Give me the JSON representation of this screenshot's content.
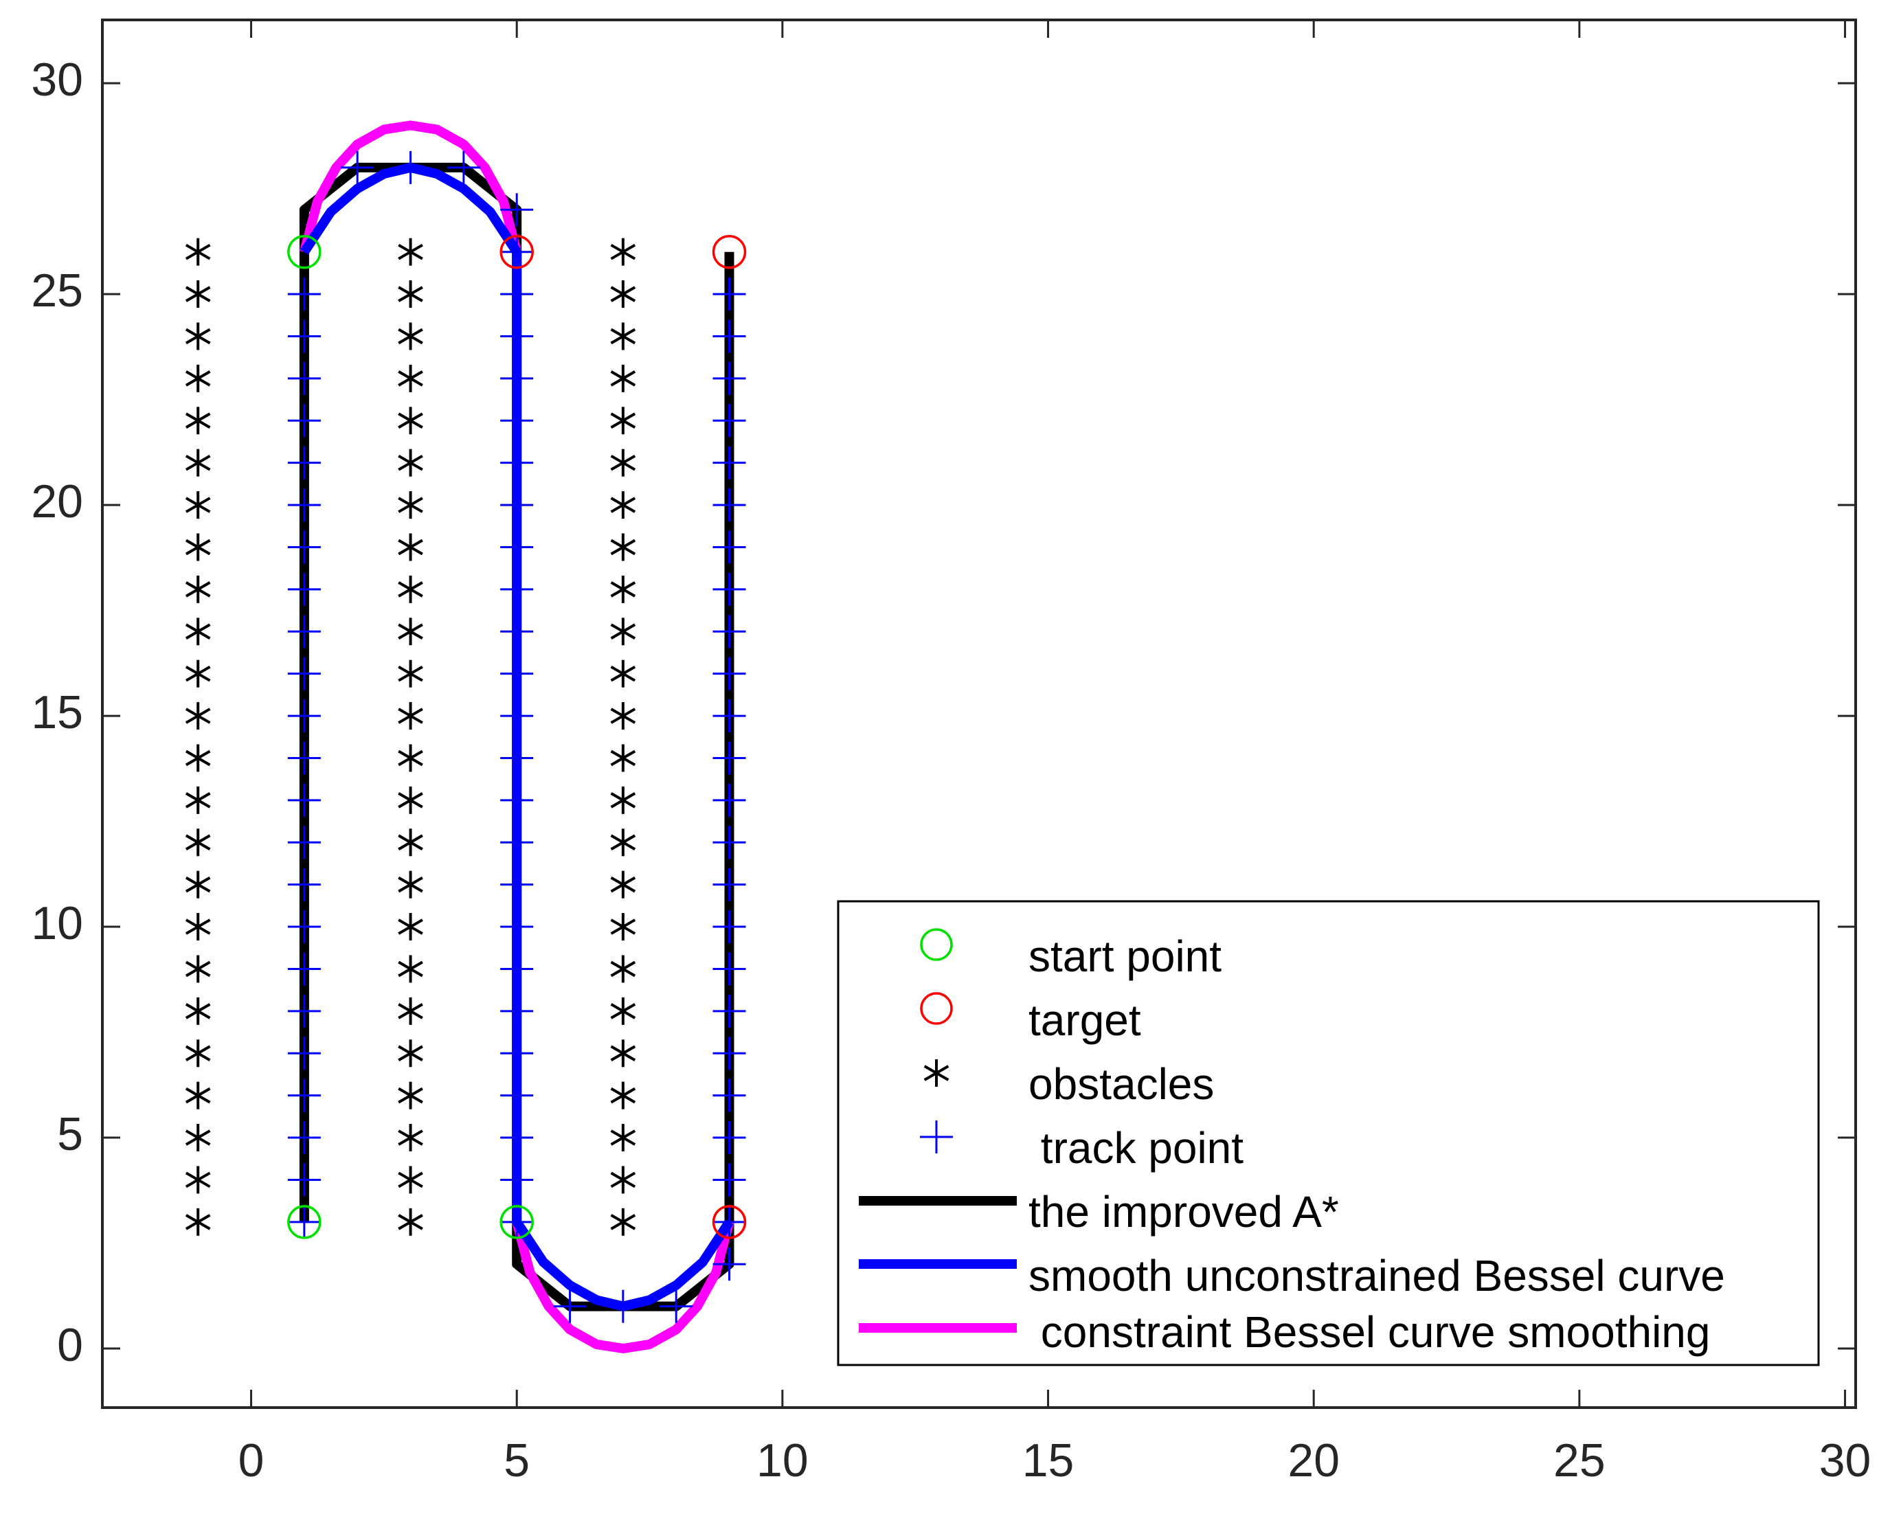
{
  "chart_data": {
    "type": "scatter",
    "title": "",
    "xlabel": "",
    "ylabel": "",
    "xlim": [
      -2.8,
      30.2
    ],
    "ylim": [
      -1.4,
      31.5
    ],
    "grid": false,
    "legend_position": "bottom-right",
    "x_ticks": [
      "0",
      "5",
      "10",
      "15",
      "20",
      "25",
      "30"
    ],
    "y_ticks": [
      "0",
      "5",
      "10",
      "15",
      "20",
      "25",
      "30"
    ],
    "start_points": {
      "label": "start point",
      "color": "#00e000",
      "marker": "circle",
      "x": [
        1,
        1,
        5
      ],
      "y": [
        26,
        3,
        3
      ]
    },
    "targets": {
      "label": "target",
      "color": "#ff0000",
      "marker": "circle",
      "x": [
        5,
        9,
        9
      ],
      "y": [
        26,
        26,
        3
      ]
    },
    "obstacles": {
      "label": "obstacles",
      "color": "#000000",
      "marker": "asterisk",
      "columns_x": [
        -1,
        3,
        7
      ],
      "y_from": 3,
      "y_to": 26,
      "y_step": 1
    },
    "track_points": {
      "label": " track point",
      "color": "#0000ff",
      "marker": "plus",
      "segments": [
        {
          "x": 1,
          "y_from": 3,
          "y_to": 25
        },
        {
          "x": 5,
          "y_from": 3,
          "y_to": 27
        },
        {
          "x": 9,
          "y_from": 2,
          "y_to": 25
        }
      ],
      "extra": [
        [
          2,
          28
        ],
        [
          3,
          28
        ],
        [
          4,
          28
        ],
        [
          6,
          1
        ],
        [
          7,
          1
        ],
        [
          8,
          1
        ]
      ]
    },
    "series": [
      {
        "name": "the improved A*",
        "color": "#000000",
        "line_width": 5,
        "points": [
          [
            1,
            3
          ],
          [
            1,
            27
          ],
          [
            2,
            28
          ],
          [
            4,
            28
          ],
          [
            5,
            27
          ],
          [
            5,
            2
          ],
          [
            6,
            1
          ],
          [
            8,
            1
          ],
          [
            9,
            2
          ],
          [
            9,
            26
          ]
        ]
      },
      {
        "name": "smooth unconstrained Bessel curve",
        "color": "#0000ff",
        "line_width": 5,
        "points": [
          [
            1,
            26
          ],
          [
            1.5,
            26.95
          ],
          [
            2,
            27.5
          ],
          [
            2.5,
            27.85
          ],
          [
            3,
            28
          ],
          [
            3.5,
            27.85
          ],
          [
            4,
            27.5
          ],
          [
            4.5,
            26.95
          ],
          [
            5,
            26
          ],
          [
            5,
            3
          ],
          [
            5.5,
            2.05
          ],
          [
            6,
            1.5
          ],
          [
            6.5,
            1.15
          ],
          [
            7,
            1
          ],
          [
            7.5,
            1.15
          ],
          [
            8,
            1.5
          ],
          [
            8.5,
            2.05
          ],
          [
            9,
            3
          ]
        ]
      },
      {
        "name": " constraint Bessel curve smoothing",
        "color": "#ff00ff",
        "line_width": 5,
        "points": [
          [
            1,
            26
          ],
          [
            1.25,
            27.2
          ],
          [
            1.6,
            28.0
          ],
          [
            2.0,
            28.55
          ],
          [
            2.5,
            28.9
          ],
          [
            3,
            29
          ],
          [
            3.5,
            28.9
          ],
          [
            4.0,
            28.55
          ],
          [
            4.4,
            28.0
          ],
          [
            4.75,
            27.2
          ],
          [
            5,
            26
          ],
          [
            5,
            3
          ],
          [
            5.25,
            1.8
          ],
          [
            5.6,
            1.0
          ],
          [
            6.0,
            0.45
          ],
          [
            6.5,
            0.1
          ],
          [
            7,
            0
          ],
          [
            7.5,
            0.1
          ],
          [
            8.0,
            0.45
          ],
          [
            8.4,
            1.0
          ],
          [
            8.75,
            1.8
          ],
          [
            9,
            3
          ]
        ]
      }
    ]
  },
  "legend": {
    "start": "start point",
    "target": "target",
    "obstacles": "obstacles",
    "track": " track point",
    "astar": "the improved A*",
    "bessel": "smooth unconstrained Bessel curve",
    "constraint": " constraint Bessel curve smoothing"
  }
}
